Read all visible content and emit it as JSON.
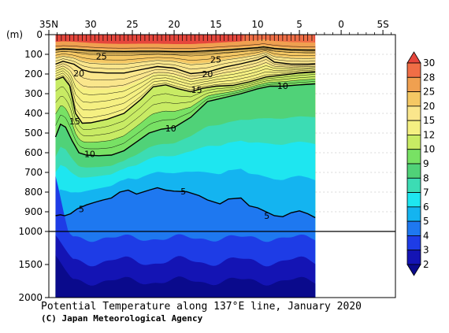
{
  "chart_data": {
    "type": "contour",
    "title": "Potential Temperature along 137°E line, January 2020",
    "credit": "(C) Japan Meteorological Agency",
    "x_axis": {
      "ticks": [
        35,
        30,
        25,
        20,
        15,
        10,
        5,
        0,
        -5
      ],
      "tick_labels": [
        "35N",
        "30",
        "25",
        "20",
        "15",
        "10",
        "5",
        "0",
        "5S"
      ],
      "range": [
        35,
        -6.5
      ],
      "data_extent": [
        34.2,
        3.1
      ]
    },
    "y_axis": {
      "label": "(m)",
      "upper_ticks": [
        0,
        100,
        200,
        300,
        400,
        500,
        600,
        700,
        800,
        900,
        1000
      ],
      "lower_ticks": [
        1000,
        1500,
        2000
      ],
      "tick_labels": [
        "0",
        "100",
        "200",
        "300",
        "400",
        "500",
        "600",
        "700",
        "800",
        "900",
        "1000",
        "1500",
        "2000"
      ],
      "range": [
        0,
        2000
      ],
      "scale_break_depth": 1000
    },
    "colorbar": {
      "levels": [
        2,
        3,
        4,
        5,
        6,
        7,
        8,
        9,
        10,
        12,
        15,
        20,
        25,
        28,
        30
      ],
      "colors": [
        "#0a0a8c",
        "#1414b4",
        "#1e3ce6",
        "#1e78f0",
        "#14b4f0",
        "#1ee6f0",
        "#3cdcb4",
        "#50d278",
        "#78e164",
        "#c8eb64",
        "#f5f082",
        "#fae68c",
        "#f5c864",
        "#f0a050",
        "#f06e46",
        "#e6463c"
      ]
    },
    "contour_labels": [
      {
        "text": "25",
        "x": 28.7,
        "depth": 110
      },
      {
        "text": "25",
        "x": 15.0,
        "depth": 125
      },
      {
        "text": "20",
        "x": 31.4,
        "depth": 195
      },
      {
        "text": "20",
        "x": 16.0,
        "depth": 200
      },
      {
        "text": "15",
        "x": 17.3,
        "depth": 280
      },
      {
        "text": "10",
        "x": 7.0,
        "depth": 260
      },
      {
        "text": "15",
        "x": 31.9,
        "depth": 440
      },
      {
        "text": "10",
        "x": 20.4,
        "depth": 475
      },
      {
        "text": "10",
        "x": 30.1,
        "depth": 605
      },
      {
        "text": "5",
        "x": 18.9,
        "depth": 795
      },
      {
        "text": "5",
        "x": 31.1,
        "depth": 885
      },
      {
        "text": "5",
        "x": 8.9,
        "depth": 920
      }
    ],
    "bold_isotherms": [
      {
        "value": 25,
        "points": [
          [
            34.2,
            75
          ],
          [
            33.3,
            72
          ],
          [
            32.0,
            74
          ],
          [
            30.0,
            80
          ],
          [
            28.0,
            84
          ],
          [
            26.0,
            85
          ],
          [
            24.0,
            84
          ],
          [
            22.0,
            84
          ],
          [
            20.0,
            86
          ],
          [
            18.0,
            86
          ],
          [
            16.0,
            82
          ],
          [
            14.0,
            77
          ],
          [
            12.0,
            72
          ],
          [
            10.0,
            66
          ],
          [
            9.3,
            62
          ],
          [
            8.0,
            70
          ],
          [
            6.0,
            76
          ],
          [
            4.0,
            78
          ],
          [
            3.1,
            78
          ]
        ]
      },
      {
        "value": 20,
        "points": [
          [
            34.2,
            150
          ],
          [
            33.3,
            135
          ],
          [
            32.0,
            150
          ],
          [
            31.0,
            178
          ],
          [
            30.0,
            190
          ],
          [
            28.0,
            195
          ],
          [
            26.0,
            195
          ],
          [
            24.0,
            178
          ],
          [
            22.0,
            162
          ],
          [
            20.0,
            170
          ],
          [
            18.0,
            198
          ],
          [
            16.0,
            190
          ],
          [
            14.0,
            165
          ],
          [
            12.0,
            148
          ],
          [
            10.0,
            128
          ],
          [
            9.0,
            110
          ],
          [
            8.0,
            140
          ],
          [
            6.0,
            150
          ],
          [
            4.0,
            150
          ],
          [
            3.1,
            148
          ]
        ]
      },
      {
        "value": 15,
        "points": [
          [
            34.2,
            230
          ],
          [
            33.3,
            215
          ],
          [
            32.5,
            260
          ],
          [
            31.8,
            400
          ],
          [
            31.0,
            450
          ],
          [
            30.0,
            448
          ],
          [
            28.0,
            430
          ],
          [
            26.0,
            400
          ],
          [
            24.0,
            330
          ],
          [
            22.5,
            265
          ],
          [
            21.0,
            255
          ],
          [
            19.5,
            275
          ],
          [
            18.0,
            290
          ],
          [
            16.5,
            272
          ],
          [
            15.0,
            262
          ],
          [
            13.0,
            258
          ],
          [
            11.0,
            240
          ],
          [
            9.0,
            215
          ],
          [
            7.0,
            205
          ],
          [
            5.0,
            195
          ],
          [
            3.1,
            190
          ]
        ]
      },
      {
        "value": 10,
        "points": [
          [
            34.2,
            520
          ],
          [
            33.6,
            455
          ],
          [
            33.0,
            470
          ],
          [
            32.2,
            540
          ],
          [
            31.4,
            600
          ],
          [
            30.5,
            612
          ],
          [
            29.0,
            615
          ],
          [
            27.5,
            612
          ],
          [
            26.0,
            590
          ],
          [
            24.5,
            545
          ],
          [
            23.0,
            500
          ],
          [
            21.5,
            480
          ],
          [
            20.0,
            472
          ],
          [
            18.0,
            420
          ],
          [
            16.0,
            340
          ],
          [
            14.0,
            320
          ],
          [
            12.0,
            300
          ],
          [
            10.0,
            275
          ],
          [
            8.5,
            262
          ],
          [
            7.0,
            262
          ],
          [
            5.0,
            255
          ],
          [
            3.1,
            250
          ]
        ]
      },
      {
        "value": 5,
        "points": [
          [
            34.2,
            920
          ],
          [
            33.6,
            915
          ],
          [
            33.1,
            920
          ],
          [
            32.4,
            910
          ],
          [
            31.6,
            885
          ],
          [
            30.5,
            865
          ],
          [
            29.5,
            852
          ],
          [
            28.5,
            840
          ],
          [
            27.5,
            830
          ],
          [
            26.5,
            800
          ],
          [
            25.5,
            790
          ],
          [
            24.5,
            810
          ],
          [
            23.0,
            790
          ],
          [
            22.0,
            778
          ],
          [
            21.0,
            790
          ],
          [
            20.0,
            795
          ],
          [
            18.5,
            798
          ],
          [
            17.0,
            818
          ],
          [
            16.0,
            840
          ],
          [
            14.5,
            860
          ],
          [
            13.5,
            835
          ],
          [
            12.0,
            830
          ],
          [
            11.0,
            870
          ],
          [
            10.0,
            880
          ],
          [
            9.0,
            900
          ],
          [
            8.0,
            920
          ],
          [
            7.0,
            925
          ],
          [
            6.0,
            905
          ],
          [
            5.0,
            895
          ],
          [
            4.0,
            910
          ],
          [
            3.1,
            930
          ]
        ]
      }
    ],
    "section_labels": {
      "depth_unit": "(m)"
    }
  }
}
